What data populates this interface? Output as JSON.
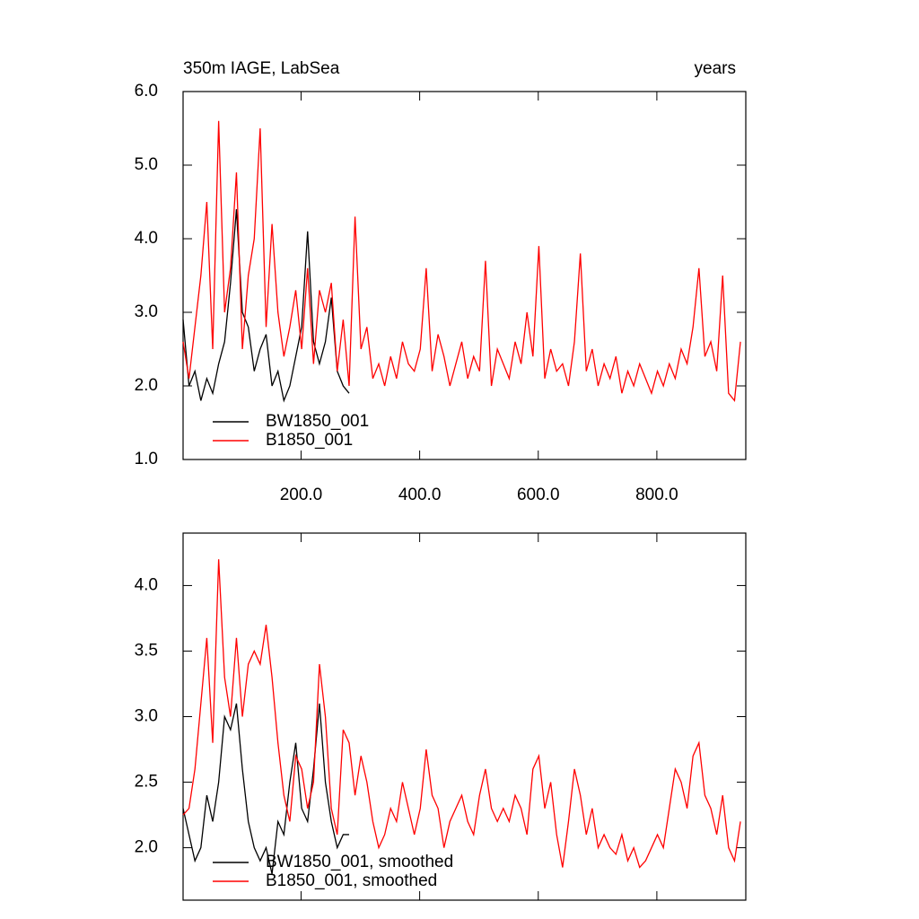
{
  "chart_data": [
    {
      "type": "line",
      "title": "350m IAGE, LabSea",
      "right_title": "years",
      "xlim": [
        1,
        950
      ],
      "xticks": [
        {
          "value": 200,
          "label": "200.0"
        },
        {
          "value": 400,
          "label": "400.0"
        },
        {
          "value": 600,
          "label": "600.0"
        },
        {
          "value": 800,
          "label": "800.0"
        }
      ],
      "ylim": [
        1,
        6
      ],
      "yticks": [
        {
          "value": 1,
          "label": "1.0"
        },
        {
          "value": 2,
          "label": "2.0"
        },
        {
          "value": 3,
          "label": "3.0"
        },
        {
          "value": 4,
          "label": "4.0"
        },
        {
          "value": 5,
          "label": "5.0"
        },
        {
          "value": 6,
          "label": "6.0"
        }
      ],
      "series": [
        {
          "name": "BW1850_001",
          "color": "#000000",
          "x": [
            1,
            11,
            21,
            31,
            41,
            51,
            61,
            71,
            81,
            91,
            101,
            111,
            121,
            131,
            141,
            151,
            161,
            171,
            181,
            191,
            201,
            211,
            221,
            231,
            241,
            251,
            261,
            271,
            281
          ],
          "values": [
            2.9,
            2.0,
            2.2,
            1.8,
            2.1,
            1.9,
            2.3,
            2.6,
            3.4,
            4.4,
            3.0,
            2.8,
            2.2,
            2.5,
            2.7,
            2.0,
            2.2,
            1.8,
            2.0,
            2.4,
            2.8,
            4.1,
            2.6,
            2.3,
            2.6,
            3.2,
            2.2,
            2.0,
            1.9
          ]
        },
        {
          "name": "B1850_001",
          "color": "#ff0000",
          "x": [
            1,
            11,
            21,
            31,
            41,
            51,
            61,
            71,
            81,
            91,
            101,
            111,
            121,
            131,
            141,
            151,
            161,
            171,
            181,
            191,
            201,
            211,
            221,
            231,
            241,
            251,
            261,
            271,
            281,
            291,
            301,
            311,
            321,
            331,
            341,
            351,
            361,
            371,
            381,
            391,
            401,
            411,
            421,
            431,
            441,
            451,
            461,
            471,
            481,
            491,
            501,
            511,
            521,
            531,
            541,
            551,
            561,
            571,
            581,
            591,
            601,
            611,
            621,
            631,
            641,
            651,
            661,
            671,
            681,
            691,
            701,
            711,
            721,
            731,
            741,
            751,
            761,
            771,
            781,
            791,
            801,
            811,
            821,
            831,
            841,
            851,
            861,
            871,
            881,
            891,
            901,
            911,
            921,
            931,
            941
          ],
          "values": [
            2.6,
            2.1,
            2.8,
            3.5,
            4.5,
            2.5,
            5.6,
            3.0,
            3.6,
            4.9,
            2.5,
            3.5,
            4.0,
            5.5,
            2.8,
            4.2,
            3.0,
            2.4,
            2.8,
            3.3,
            2.5,
            3.6,
            2.3,
            3.3,
            3.0,
            3.4,
            2.2,
            2.9,
            2.0,
            4.3,
            2.5,
            2.8,
            2.1,
            2.3,
            2.0,
            2.4,
            2.1,
            2.6,
            2.3,
            2.2,
            2.5,
            3.6,
            2.2,
            2.7,
            2.4,
            2.0,
            2.3,
            2.6,
            2.1,
            2.4,
            2.2,
            3.7,
            2.0,
            2.5,
            2.3,
            2.1,
            2.6,
            2.3,
            3.0,
            2.4,
            3.9,
            2.1,
            2.5,
            2.2,
            2.3,
            2.0,
            2.6,
            3.8,
            2.2,
            2.5,
            2.0,
            2.3,
            2.1,
            2.4,
            1.9,
            2.2,
            2.0,
            2.3,
            2.1,
            1.9,
            2.2,
            2.0,
            2.3,
            2.1,
            2.5,
            2.3,
            2.8,
            3.6,
            2.4,
            2.6,
            2.2,
            3.5,
            1.9,
            1.8,
            2.6
          ]
        }
      ]
    },
    {
      "type": "line",
      "xlim": [
        1,
        950
      ],
      "xticks": [
        200,
        400,
        600,
        800
      ],
      "ylim": [
        1.6,
        4.4
      ],
      "yticks": [
        {
          "value": 2,
          "label": "2.0"
        },
        {
          "value": 2.5,
          "label": "2.5"
        },
        {
          "value": 3,
          "label": "3.0"
        },
        {
          "value": 3.5,
          "label": "3.5"
        },
        {
          "value": 4,
          "label": "4.0"
        }
      ],
      "series": [
        {
          "name": "BW1850_001, smoothed",
          "color": "#000000",
          "x": [
            1,
            11,
            21,
            31,
            41,
            51,
            61,
            71,
            81,
            91,
            101,
            111,
            121,
            131,
            141,
            151,
            161,
            171,
            181,
            191,
            201,
            211,
            221,
            231,
            241,
            251,
            261,
            271,
            281
          ],
          "values": [
            2.3,
            2.1,
            1.9,
            2.0,
            2.4,
            2.2,
            2.5,
            3.0,
            2.9,
            3.1,
            2.6,
            2.2,
            2.0,
            1.9,
            2.0,
            1.8,
            2.2,
            2.1,
            2.5,
            2.8,
            2.3,
            2.2,
            2.6,
            3.1,
            2.5,
            2.2,
            2.0,
            2.1,
            2.1
          ]
        },
        {
          "name": "B1850_001, smoothed",
          "color": "#ff0000",
          "x": [
            1,
            11,
            21,
            31,
            41,
            51,
            61,
            71,
            81,
            91,
            101,
            111,
            121,
            131,
            141,
            151,
            161,
            171,
            181,
            191,
            201,
            211,
            221,
            231,
            241,
            251,
            261,
            271,
            281,
            291,
            301,
            311,
            321,
            331,
            341,
            351,
            361,
            371,
            381,
            391,
            401,
            411,
            421,
            431,
            441,
            451,
            461,
            471,
            481,
            491,
            501,
            511,
            521,
            531,
            541,
            551,
            561,
            571,
            581,
            591,
            601,
            611,
            621,
            631,
            641,
            651,
            661,
            671,
            681,
            691,
            701,
            711,
            721,
            731,
            741,
            751,
            761,
            771,
            781,
            791,
            801,
            811,
            821,
            831,
            841,
            851,
            861,
            871,
            881,
            891,
            901,
            911,
            921,
            931,
            941
          ],
          "values": [
            2.25,
            2.3,
            2.6,
            3.1,
            3.6,
            2.8,
            4.2,
            3.3,
            3.0,
            3.6,
            3.0,
            3.4,
            3.5,
            3.4,
            3.7,
            3.3,
            2.8,
            2.4,
            2.2,
            2.7,
            2.6,
            2.3,
            2.5,
            3.4,
            3.0,
            2.3,
            2.1,
            2.9,
            2.8,
            2.4,
            2.7,
            2.5,
            2.2,
            2.0,
            2.1,
            2.3,
            2.2,
            2.5,
            2.3,
            2.1,
            2.3,
            2.75,
            2.4,
            2.3,
            2.0,
            2.2,
            2.3,
            2.4,
            2.2,
            2.1,
            2.4,
            2.6,
            2.3,
            2.2,
            2.3,
            2.2,
            2.4,
            2.3,
            2.1,
            2.6,
            2.7,
            2.3,
            2.5,
            2.1,
            1.85,
            2.2,
            2.6,
            2.4,
            2.1,
            2.3,
            2.0,
            2.1,
            2.0,
            1.95,
            2.1,
            1.9,
            2.0,
            1.85,
            1.9,
            2.0,
            2.1,
            2.0,
            2.3,
            2.6,
            2.5,
            2.3,
            2.7,
            2.8,
            2.4,
            2.3,
            2.1,
            2.4,
            2.0,
            1.9,
            2.2
          ]
        }
      ]
    }
  ]
}
